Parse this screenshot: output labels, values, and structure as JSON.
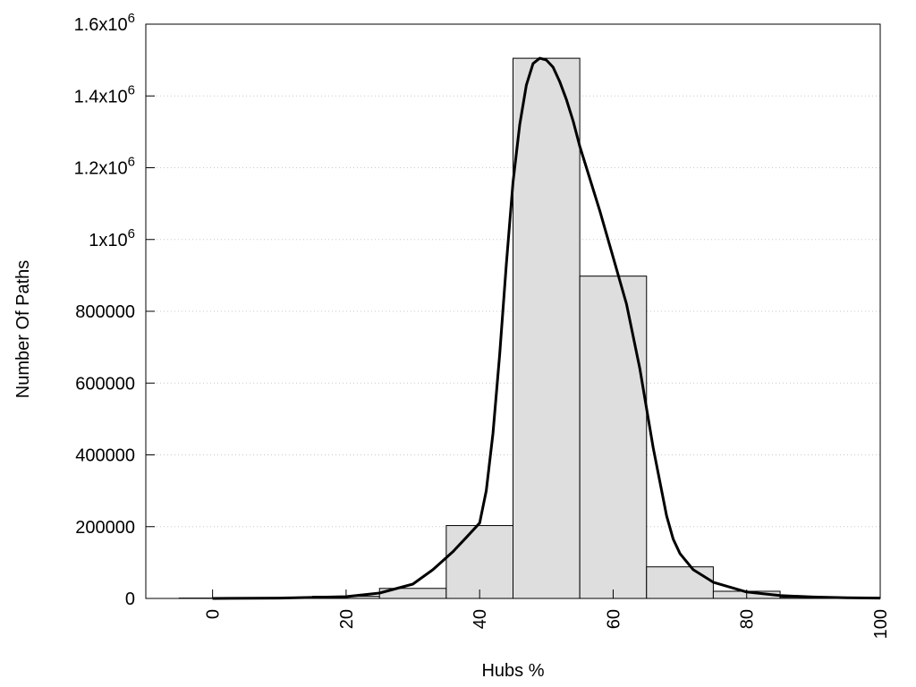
{
  "chart_data": {
    "type": "bar",
    "xlabel": "Hubs %",
    "ylabel": "Number Of Paths",
    "xlim": [
      -10,
      100
    ],
    "ylim": [
      0,
      1600000
    ],
    "x_ticks": [
      {
        "value": 0,
        "label": "0"
      },
      {
        "value": 20,
        "label": "20"
      },
      {
        "value": 40,
        "label": "40"
      },
      {
        "value": 60,
        "label": "60"
      },
      {
        "value": 80,
        "label": "80"
      },
      {
        "value": 100,
        "label": "100"
      }
    ],
    "y_ticks": [
      {
        "value": 0,
        "label": "0"
      },
      {
        "value": 200000,
        "label": "200000"
      },
      {
        "value": 400000,
        "label": "400000"
      },
      {
        "value": 600000,
        "label": "600000"
      },
      {
        "value": 800000,
        "label": "800000"
      },
      {
        "value": 1000000,
        "label": "1x10",
        "sup": "6"
      },
      {
        "value": 1200000,
        "label": "1.2x10",
        "sup": "6"
      },
      {
        "value": 1400000,
        "label": "1.4x10",
        "sup": "6"
      },
      {
        "value": 1600000,
        "label": "1.6x10",
        "sup": "6"
      }
    ],
    "grid": "horizontal dotted",
    "bin_width": 10,
    "bins": [
      {
        "x": 0,
        "value": 1000
      },
      {
        "x": 10,
        "value": 1500
      },
      {
        "x": 20,
        "value": 6000
      },
      {
        "x": 30,
        "value": 28000
      },
      {
        "x": 40,
        "value": 203000
      },
      {
        "x": 50,
        "value": 1505000
      },
      {
        "x": 60,
        "value": 898000
      },
      {
        "x": 70,
        "value": 88000
      },
      {
        "x": 80,
        "value": 20000
      },
      {
        "x": 90,
        "value": 3000
      }
    ],
    "curve": {
      "x": [
        0,
        10,
        20,
        25,
        30,
        33,
        36,
        38,
        40,
        41,
        42,
        43,
        44,
        45,
        46,
        47,
        48,
        49,
        50,
        51,
        52,
        53,
        54,
        55,
        56,
        58,
        60,
        62,
        64,
        66,
        68,
        69,
        70,
        72,
        75,
        80,
        85,
        90,
        95,
        100
      ],
      "y": [
        0,
        1000,
        5000,
        15000,
        40000,
        80000,
        130000,
        170000,
        210000,
        300000,
        460000,
        680000,
        930000,
        1160000,
        1320000,
        1430000,
        1490000,
        1505000,
        1500000,
        1480000,
        1440000,
        1390000,
        1330000,
        1260000,
        1200000,
        1080000,
        950000,
        820000,
        640000,
        420000,
        230000,
        165000,
        125000,
        80000,
        45000,
        18000,
        8000,
        4000,
        2000,
        1000
      ]
    },
    "bar_color": "#dedede",
    "curve_color": "#000000"
  }
}
